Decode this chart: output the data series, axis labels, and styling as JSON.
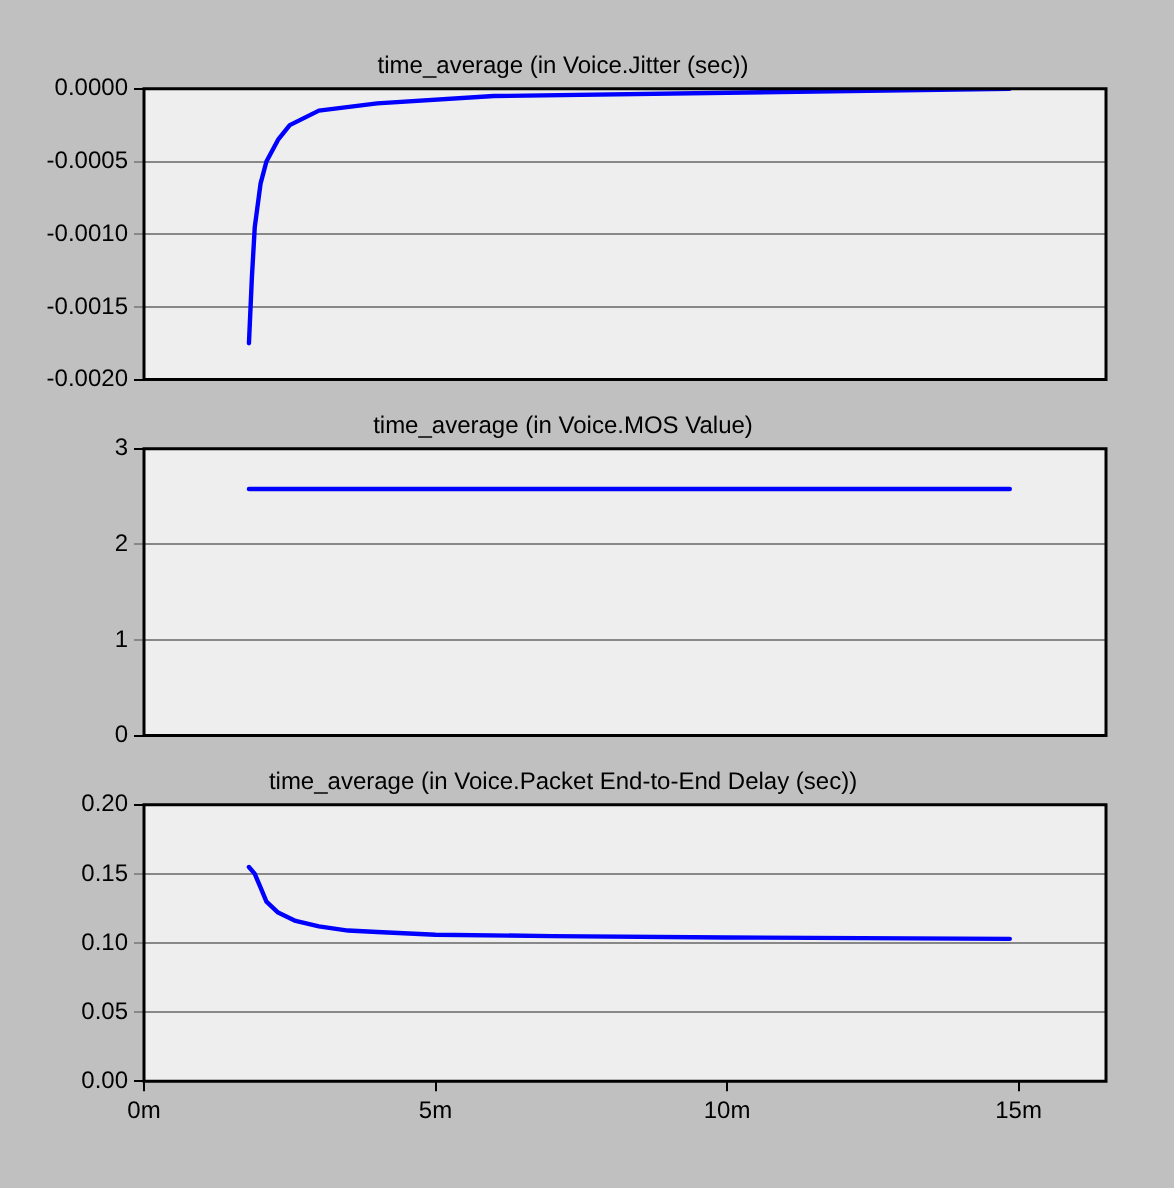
{
  "chart_data": [
    {
      "type": "line",
      "title": "time_average (in Voice.Jitter (sec))",
      "tick_labels": "y",
      "grid": "y",
      "xlim": [
        0,
        16.5
      ],
      "ylim": [
        -0.002,
        0
      ],
      "yticks": [
        {
          "value": -0.002,
          "label": "-0.0020"
        },
        {
          "value": -0.0015,
          "label": "-0.0015"
        },
        {
          "value": -0.001,
          "label": "-0.0010"
        },
        {
          "value": -0.0005,
          "label": "-0.0005"
        },
        {
          "value": 0,
          "label": "0.0000"
        }
      ],
      "x": [
        1.8,
        1.85,
        1.9,
        2.0,
        2.1,
        2.3,
        2.5,
        3,
        4,
        6,
        14.85
      ],
      "series": [
        {
          "color": "#0000ff",
          "values": [
            -0.00175,
            -0.0013,
            -0.00095,
            -0.00065,
            -0.0005,
            -0.00035,
            -0.00025,
            -0.00015,
            -0.0001,
            -5e-05,
            0
          ]
        }
      ]
    },
    {
      "type": "line",
      "title": "time_average (in Voice.MOS Value)",
      "tick_labels": "y",
      "grid": "y",
      "xlim": [
        0,
        16.5
      ],
      "ylim": [
        0,
        3
      ],
      "yticks": [
        0,
        1,
        2,
        3
      ],
      "x": [
        1.8,
        5,
        10,
        14.85
      ],
      "series": [
        {
          "color": "#0000ff",
          "values": [
            2.58,
            2.58,
            2.58,
            2.58
          ]
        }
      ]
    },
    {
      "type": "line",
      "title": "time_average (in Voice.Packet End-to-End Delay (sec))",
      "grid": "y",
      "xlim": [
        0,
        16.5
      ],
      "xticks": [
        {
          "value": 0,
          "label": "0m"
        },
        {
          "value": 5,
          "label": "5m"
        },
        {
          "value": 10,
          "label": "10m"
        },
        {
          "value": 15,
          "label": "15m"
        }
      ],
      "ylim": [
        0,
        0.2
      ],
      "yticks": [
        {
          "value": 0,
          "label": "0.00"
        },
        {
          "value": 0.05,
          "label": "0.05"
        },
        {
          "value": 0.1,
          "label": "0.10"
        },
        {
          "value": 0.15,
          "label": "0.15"
        },
        {
          "value": 0.2,
          "label": "0.20"
        }
      ],
      "x": [
        1.8,
        1.9,
        2.0,
        2.1,
        2.3,
        2.6,
        3,
        3.5,
        4,
        5,
        7,
        10,
        14.85
      ],
      "series": [
        {
          "color": "#0000ff",
          "values": [
            0.155,
            0.15,
            0.14,
            0.13,
            0.122,
            0.116,
            0.112,
            0.109,
            0.108,
            0.106,
            0.105,
            0.104,
            0.103
          ]
        }
      ]
    }
  ]
}
